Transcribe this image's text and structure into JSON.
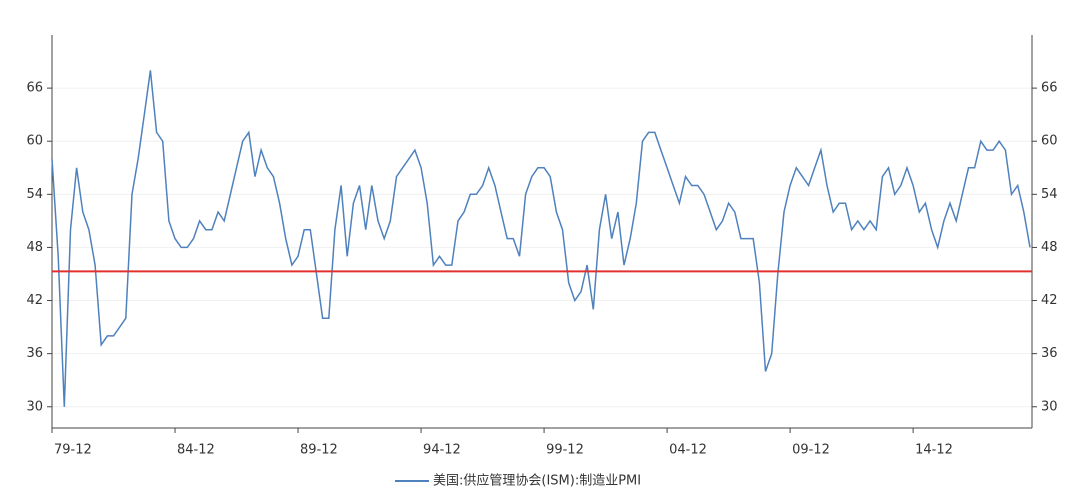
{
  "chart_data": {
    "type": "line",
    "categories": [
      "79-12",
      null,
      null,
      null,
      null,
      null,
      null,
      null,
      null,
      null,
      null,
      null,
      null,
      null,
      null,
      null,
      null,
      null,
      null,
      null,
      "84-12",
      null,
      null,
      null,
      null,
      null,
      null,
      null,
      null,
      null,
      null,
      null,
      null,
      null,
      null,
      null,
      null,
      null,
      null,
      null,
      "89-12",
      null,
      null,
      null,
      null,
      null,
      null,
      null,
      null,
      null,
      null,
      null,
      null,
      null,
      null,
      null,
      null,
      null,
      null,
      null,
      "94-12",
      null,
      null,
      null,
      null,
      null,
      null,
      null,
      null,
      null,
      null,
      null,
      null,
      null,
      null,
      null,
      null,
      null,
      null,
      null,
      "99-12",
      null,
      null,
      null,
      null,
      null,
      null,
      null,
      null,
      null,
      null,
      null,
      null,
      null,
      null,
      null,
      null,
      null,
      null,
      null,
      "04-12",
      null,
      null,
      null,
      null,
      null,
      null,
      null,
      null,
      null,
      null,
      null,
      null,
      null,
      null,
      null,
      null,
      null,
      null,
      null,
      "09-12",
      null,
      null,
      null,
      null,
      null,
      null,
      null,
      null,
      null,
      null,
      null,
      null,
      null,
      null,
      null,
      null,
      null,
      null,
      null,
      "14-12",
      null,
      null,
      null,
      null,
      null,
      null,
      null,
      null,
      null,
      null,
      null,
      null,
      null,
      null,
      null,
      null,
      null,
      null,
      null
    ],
    "series": [
      {
        "name": "美国:供应管理协会(ISM):制造业PMI",
        "color": "#4f81bd",
        "values": [
          58,
          47,
          30,
          50,
          57,
          52,
          50,
          46,
          37,
          38,
          38,
          39,
          40,
          54,
          58,
          63,
          68,
          61,
          60,
          51,
          49,
          48,
          48,
          49,
          51,
          50,
          50,
          52,
          51,
          54,
          57,
          60,
          61,
          56,
          59,
          57,
          56,
          53,
          49,
          46,
          47,
          50,
          50,
          45,
          40,
          40,
          50,
          55,
          47,
          53,
          55,
          50,
          55,
          51,
          49,
          51,
          56,
          57,
          58,
          59,
          57,
          53,
          46,
          47,
          46,
          46,
          51,
          52,
          54,
          54,
          55,
          57,
          55,
          52,
          49,
          49,
          47,
          54,
          56,
          57,
          57,
          56,
          52,
          50,
          44,
          42,
          43,
          46,
          41,
          50,
          54,
          49,
          52,
          46,
          49,
          53,
          60,
          61,
          61,
          59,
          57,
          55,
          53,
          56,
          55,
          55,
          54,
          52,
          50,
          51,
          53,
          52,
          49,
          49,
          49,
          44,
          34,
          36,
          45,
          52,
          55,
          57,
          56,
          55,
          57,
          59,
          55,
          52,
          53,
          53,
          50,
          51,
          50,
          51,
          50,
          56,
          57,
          54,
          55,
          57,
          55,
          52,
          53,
          50,
          48,
          51,
          53,
          51,
          54,
          57,
          57,
          60,
          59,
          59,
          60,
          59,
          54,
          55,
          52,
          48
        ]
      }
    ],
    "ylim": [
      27.6,
      72
    ],
    "yticks": [
      30,
      36,
      42,
      48,
      54,
      60,
      66
    ],
    "hline": {
      "value": 45.3,
      "color": "#e03030"
    },
    "grid": true
  }
}
